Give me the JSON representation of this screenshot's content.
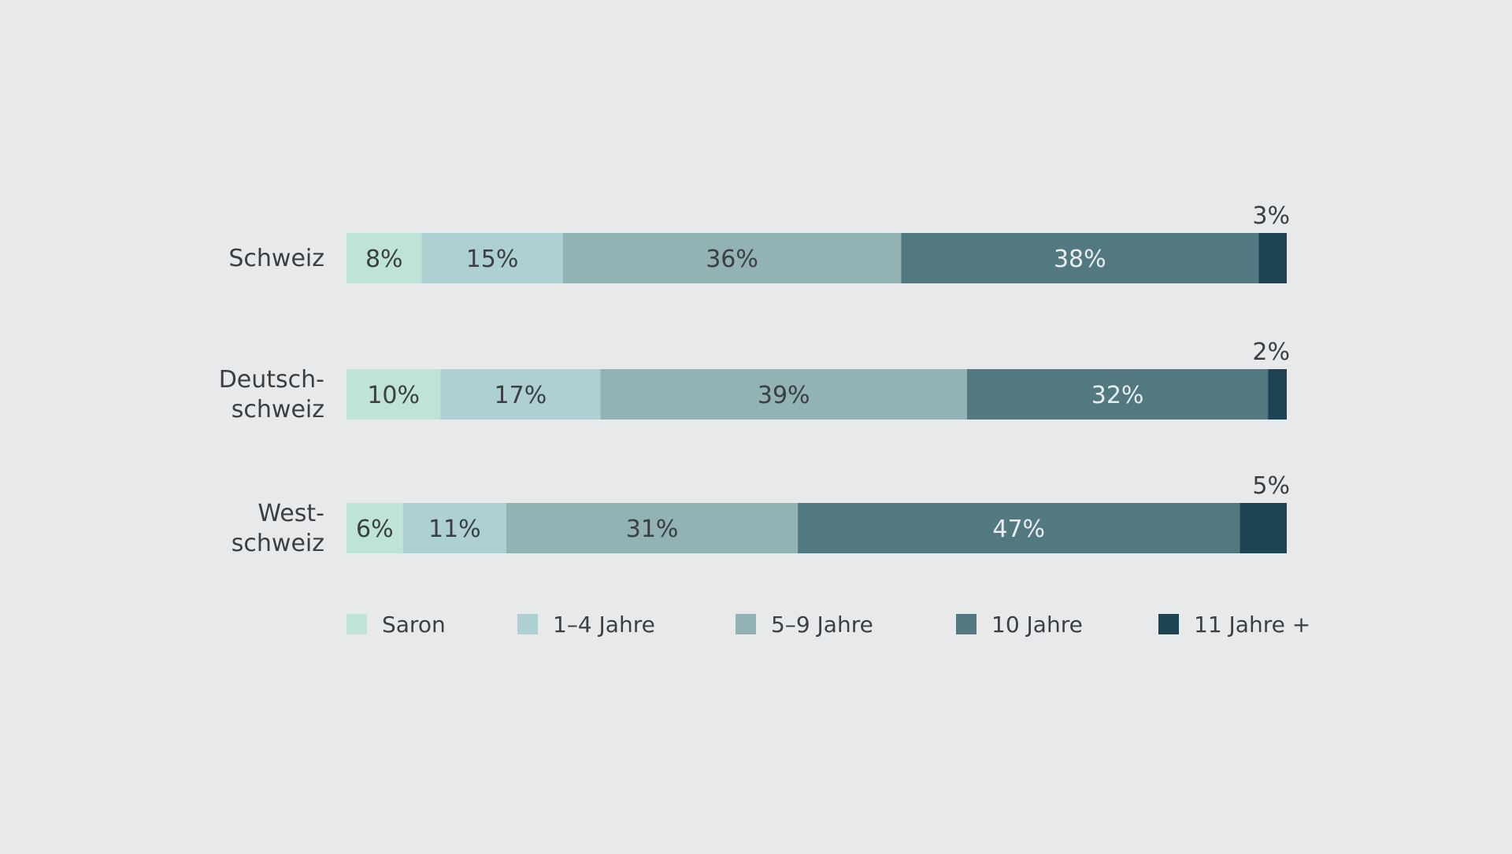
{
  "chart_data": {
    "type": "bar",
    "orientation": "horizontal",
    "stacked": true,
    "categories": [
      "Schweiz",
      "Deutsch-\nschweiz",
      "West-\nschweiz"
    ],
    "series": [
      {
        "name": "Saron",
        "values": [
          8,
          10,
          6
        ],
        "color": "#bfe3d6"
      },
      {
        "name": "1–4 Jahre",
        "values": [
          15,
          17,
          11
        ],
        "color": "#aed0d2"
      },
      {
        "name": "5–9 Jahre",
        "values": [
          36,
          39,
          31
        ],
        "color": "#92b2b3"
      },
      {
        "name": "10 Jahre",
        "values": [
          38,
          32,
          47
        ],
        "color": "#527880"
      },
      {
        "name": "11 Jahre +",
        "values": [
          3,
          2,
          5
        ],
        "color": "#1c4452"
      }
    ],
    "label_suffix": "%",
    "xlim": [
      0,
      100
    ],
    "grid": false,
    "legend_position": "bottom",
    "colors": {
      "background": "#e8e9eb",
      "text_dark": "#3a3f44",
      "text_light": "#e8eef0"
    }
  }
}
